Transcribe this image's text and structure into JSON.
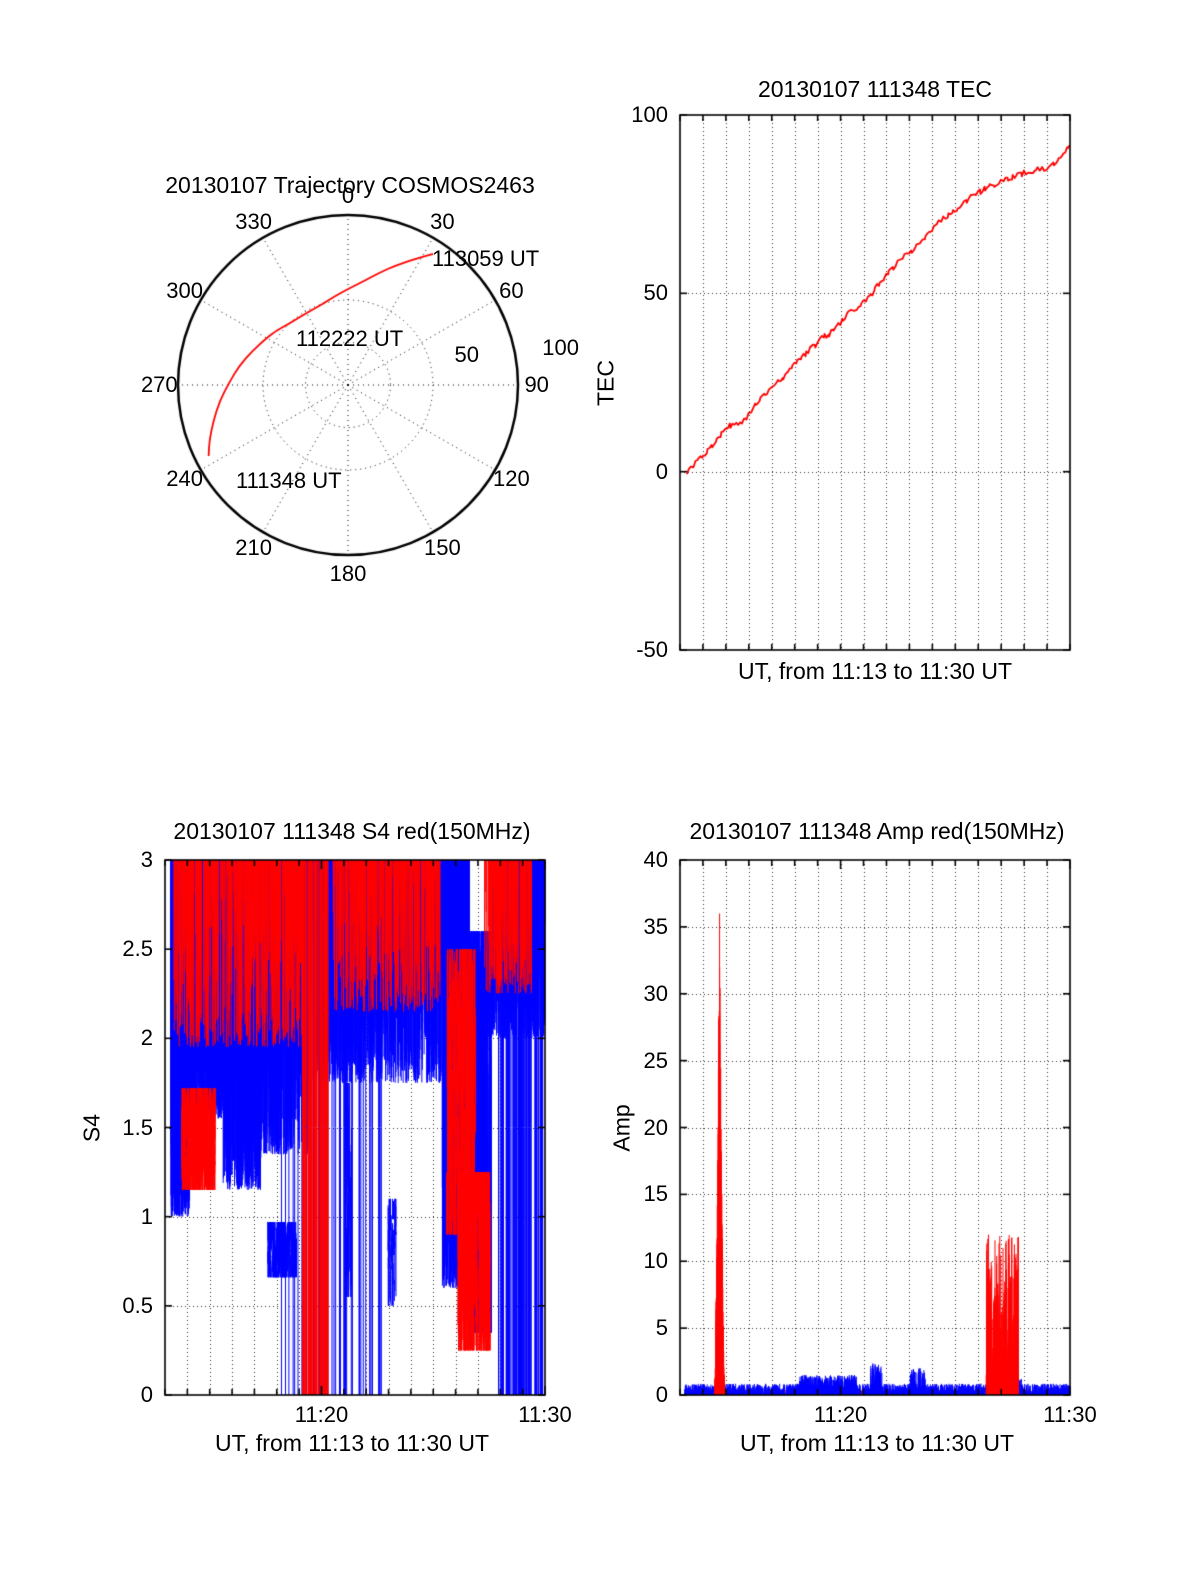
{
  "figure": {
    "background": "#ffffff"
  },
  "chart_data": [
    {
      "type": "polar-trajectory",
      "title": "20130107 Trajectory COSMOS2463",
      "azimuth_labels": [
        "0",
        "30",
        "60",
        "90",
        "120",
        "150",
        "180",
        "210",
        "240",
        "270",
        "300",
        "330"
      ],
      "radial_labels": [
        {
          "text": "50",
          "r": 0.72,
          "az": 76
        },
        {
          "text": "100",
          "r": 1.27,
          "az": 80
        }
      ],
      "rings": [
        0.25,
        0.5
      ],
      "annotations": [
        {
          "label": "113059 UT"
        },
        {
          "label": "112222 UT"
        },
        {
          "label": "111348 UT"
        }
      ],
      "trajectory": {
        "color": "#ff0000",
        "points_az_r": [
          [
            33,
            92
          ],
          [
            28,
            84
          ],
          [
            22,
            76
          ],
          [
            16,
            69
          ],
          [
            9,
            62
          ],
          [
            1,
            57
          ],
          [
            352,
            53
          ],
          [
            343,
            50
          ],
          [
            334,
            49
          ],
          [
            325,
            49
          ],
          [
            316,
            50
          ],
          [
            307,
            53
          ],
          [
            298,
            56
          ],
          [
            289,
            60
          ],
          [
            280,
            65
          ],
          [
            271,
            70
          ],
          [
            263,
            76
          ],
          [
            255,
            82
          ],
          [
            248,
            88
          ],
          [
            243,
            92
          ]
        ]
      }
    },
    {
      "type": "line",
      "title": "20130107 111348 TEC",
      "ylabel": "TEC",
      "xlabel": "UT, from 11:13 to 11:30 UT",
      "x_start": "11:13",
      "x_end": "11:30",
      "x_minutes": 17,
      "ylim": [
        -50,
        100
      ],
      "yticks": [
        -50,
        0,
        50,
        100
      ],
      "ytick_labels": [
        "-50",
        "0",
        "50",
        "100"
      ],
      "xticks": [],
      "xtick_labels": [],
      "grid": "dotted",
      "series": [
        {
          "name": "TEC",
          "color": "#ff0000",
          "points": [
            [
              0.3,
              0
            ],
            [
              0.5,
              1.2
            ],
            [
              0.8,
              3
            ],
            [
              1.0,
              4.5
            ],
            [
              1.2,
              6
            ],
            [
              1.4,
              7.5
            ],
            [
              1.6,
              9
            ],
            [
              1.8,
              10.5
            ],
            [
              2.0,
              12
            ],
            [
              2.2,
              13
            ],
            [
              2.45,
              13.5
            ],
            [
              2.7,
              14
            ],
            [
              2.9,
              15
            ],
            [
              3.1,
              17
            ],
            [
              3.3,
              19
            ],
            [
              3.5,
              20.5
            ],
            [
              3.7,
              21.5
            ],
            [
              3.9,
              23
            ],
            [
              4.1,
              24.5
            ],
            [
              4.3,
              25.5
            ],
            [
              4.5,
              26.5
            ],
            [
              4.7,
              28
            ],
            [
              4.9,
              29.5
            ],
            [
              5.1,
              31
            ],
            [
              5.3,
              32
            ],
            [
              5.5,
              33
            ],
            [
              5.7,
              34.5
            ],
            [
              5.9,
              35.5
            ],
            [
              6.1,
              37
            ],
            [
              6.3,
              38
            ],
            [
              6.5,
              38.5
            ],
            [
              6.7,
              40
            ],
            [
              6.9,
              41
            ],
            [
              7.1,
              42.5
            ],
            [
              7.3,
              44
            ],
            [
              7.5,
              45
            ],
            [
              7.7,
              46
            ],
            [
              7.9,
              47
            ],
            [
              8.1,
              48
            ],
            [
              8.3,
              49.5
            ],
            [
              8.5,
              51
            ],
            [
              8.7,
              53
            ],
            [
              8.9,
              54.5
            ],
            [
              9.1,
              56
            ],
            [
              9.3,
              57
            ],
            [
              9.5,
              58.5
            ],
            [
              9.7,
              60
            ],
            [
              9.9,
              61
            ],
            [
              10.1,
              62
            ],
            [
              10.3,
              63.5
            ],
            [
              10.5,
              65
            ],
            [
              10.7,
              66
            ],
            [
              10.9,
              67
            ],
            [
              11.1,
              68.5
            ],
            [
              11.3,
              70
            ],
            [
              11.5,
              71
            ],
            [
              11.7,
              72
            ],
            [
              11.9,
              73
            ],
            [
              12.1,
              74
            ],
            [
              12.3,
              75
            ],
            [
              12.5,
              76
            ],
            [
              12.7,
              77
            ],
            [
              12.9,
              77.5
            ],
            [
              13.1,
              78.5
            ],
            [
              13.3,
              79.5
            ],
            [
              13.5,
              80
            ],
            [
              13.7,
              80.5
            ],
            [
              13.9,
              81
            ],
            [
              14.1,
              81.5
            ],
            [
              14.3,
              82
            ],
            [
              14.5,
              82.5
            ],
            [
              14.7,
              83
            ],
            [
              14.9,
              83.5
            ],
            [
              15.1,
              84
            ],
            [
              15.3,
              84
            ],
            [
              15.5,
              84.5
            ],
            [
              15.7,
              85
            ],
            [
              15.9,
              85
            ],
            [
              16.1,
              85.5
            ],
            [
              16.3,
              86.5
            ],
            [
              16.5,
              88
            ],
            [
              16.7,
              89.5
            ],
            [
              16.9,
              90.5
            ],
            [
              17,
              91
            ]
          ]
        }
      ]
    },
    {
      "type": "scatter-noise",
      "title": "20130107 111348 S4 red(150MHz)",
      "ylabel": "S4",
      "xlabel": "UT, from 11:13 to 11:30 UT",
      "x_minutes": 17,
      "ylim": [
        0,
        3
      ],
      "yticks": [
        0,
        0.5,
        1,
        1.5,
        2,
        2.5,
        3
      ],
      "ytick_labels": [
        "0",
        "0.5",
        "1",
        "1.5",
        "2",
        "2.5",
        "3"
      ],
      "xticks": [
        7,
        17
      ],
      "xtick_labels": [
        "11:20",
        "11:30"
      ],
      "grid": "dotted",
      "series": [
        {
          "name": "blue",
          "color": "#0000ff",
          "bands": [
            {
              "t0": 0.25,
              "t1": 1.1,
              "lo": 1.0,
              "hi": 3.0,
              "n": 380,
              "style": "hang"
            },
            {
              "t0": 1.1,
              "t1": 2.6,
              "lo": 1.55,
              "hi": 3.0,
              "n": 560,
              "style": "hang"
            },
            {
              "t0": 2.6,
              "t1": 4.3,
              "lo": 1.15,
              "hi": 3.0,
              "n": 620,
              "style": "hang"
            },
            {
              "t0": 4.3,
              "t1": 6.4,
              "lo": 1.35,
              "hi": 3.0,
              "n": 540,
              "style": "hang"
            },
            {
              "t0": 4.6,
              "t1": 5.9,
              "lo": 0.66,
              "hi": 0.97,
              "n": 320,
              "style": "seg"
            },
            {
              "t0": 5.0,
              "t1": 9.8,
              "lo": 0.0,
              "hi": 3.0,
              "n": 55,
              "style": "full"
            },
            {
              "t0": 6.4,
              "t1": 12.4,
              "lo": 1.75,
              "hi": 3.0,
              "n": 1300,
              "style": "hang"
            },
            {
              "t0": 8.05,
              "t1": 8.35,
              "lo": 0.55,
              "hi": 1.75,
              "n": 45,
              "style": "seg"
            },
            {
              "t0": 9.95,
              "t1": 10.35,
              "lo": 0.5,
              "hi": 1.1,
              "n": 40,
              "style": "seg"
            },
            {
              "t0": 12.4,
              "t1": 13.6,
              "lo": 0.6,
              "hi": 3.0,
              "n": 650,
              "style": "hang"
            },
            {
              "t0": 13.6,
              "t1": 14.6,
              "lo": 0.35,
              "hi": 2.6,
              "n": 430,
              "style": "seg"
            },
            {
              "t0": 14.6,
              "t1": 17.0,
              "lo": 2.0,
              "hi": 3.0,
              "n": 540,
              "style": "hang"
            },
            {
              "t0": 14.9,
              "t1": 16.9,
              "lo": 0.0,
              "hi": 3.0,
              "n": 85,
              "style": "full"
            }
          ]
        },
        {
          "name": "red-150MHz",
          "color": "#ff0000",
          "bands": [
            {
              "t0": 0.75,
              "t1": 2.25,
              "lo": 1.15,
              "hi": 1.72,
              "n": 460,
              "style": "seg"
            },
            {
              "t0": 0.4,
              "t1": 6.2,
              "lo": 1.95,
              "hi": 3.0,
              "n": 440,
              "style": "hang"
            },
            {
              "t0": 6.15,
              "t1": 7.3,
              "lo": 0.0,
              "hi": 3.0,
              "n": 55,
              "style": "full"
            },
            {
              "t0": 7.5,
              "t1": 12.3,
              "lo": 2.15,
              "hi": 3.0,
              "n": 340,
              "style": "hang"
            },
            {
              "t0": 12.6,
              "t1": 13.9,
              "lo": 0.9,
              "hi": 2.5,
              "n": 240,
              "style": "seg"
            },
            {
              "t0": 13.1,
              "t1": 14.55,
              "lo": 0.25,
              "hi": 1.25,
              "n": 430,
              "style": "seg"
            },
            {
              "t0": 14.3,
              "t1": 16.4,
              "lo": 2.25,
              "hi": 3.0,
              "n": 180,
              "style": "hang"
            }
          ]
        }
      ]
    },
    {
      "type": "spike-series",
      "title": "20130107 111348 Amp red(150MHz)",
      "ylabel": "Amp",
      "xlabel": "UT, from 11:13 to 11:30 UT",
      "x_minutes": 17,
      "ylim": [
        0,
        40
      ],
      "yticks": [
        0,
        5,
        10,
        15,
        20,
        25,
        30,
        35,
        40
      ],
      "ytick_labels": [
        "0",
        "5",
        "10",
        "15",
        "20",
        "25",
        "30",
        "35",
        "40"
      ],
      "xticks": [
        7,
        17
      ],
      "xtick_labels": [
        "11:20",
        "11:30"
      ],
      "grid": "dotted",
      "series": [
        {
          "name": "blue",
          "color": "#0000ff",
          "components": [
            {
              "t0": 0.2,
              "t1": 17.0,
              "lo": 0.05,
              "hi": 0.85,
              "n": 2600
            },
            {
              "t0": 5.2,
              "t1": 7.7,
              "lo": 0.2,
              "hi": 1.5,
              "n": 450
            },
            {
              "t0": 8.3,
              "t1": 8.8,
              "lo": 0.2,
              "hi": 2.4,
              "n": 80
            },
            {
              "t0": 10.0,
              "t1": 10.7,
              "lo": 0.2,
              "hi": 2.0,
              "n": 80
            },
            {
              "t0": 13.3,
              "t1": 14.9,
              "lo": 0.1,
              "hi": 1.2,
              "n": 220
            }
          ]
        },
        {
          "name": "red-150MHz",
          "color": "#ff0000",
          "baseline": [
            {
              "t0": 0.2,
              "t1": 17.0,
              "lo": 0.02,
              "hi": 0.4,
              "n": 1400
            }
          ],
          "peaks": [
            {
              "t0": 1.5,
              "t1": 1.95,
              "lo": 0,
              "hi": 36,
              "n": 170,
              "shape": "spike"
            },
            {
              "t0": 13.35,
              "t1": 14.75,
              "lo": 0,
              "hi": 12,
              "n": 340,
              "shape": "burst"
            }
          ]
        }
      ]
    }
  ]
}
